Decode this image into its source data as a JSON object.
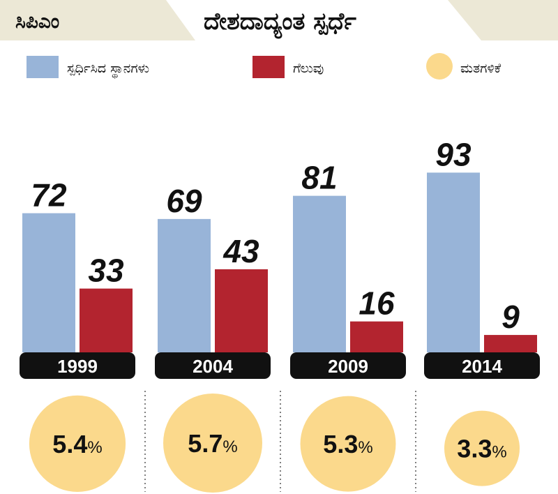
{
  "tag": "ಸಿಪಿಎಂ",
  "title": "ದೇಶದಾದ್ಯಂತ ಸ್ಪರ್ಧೆ",
  "colors": {
    "contested": "#98b4d8",
    "won": "#b3242f",
    "vote_share": "#fbd98c",
    "year_bar": "#111111",
    "header": "#ece8d6"
  },
  "chart_data": {
    "type": "bar",
    "categories": [
      "1999",
      "2004",
      "2009",
      "2014"
    ],
    "series": [
      {
        "name": "ಸ್ಪರ್ಧಿಸಿದ ಸ್ಥಾನಗಳು",
        "values": [
          72,
          69,
          81,
          93
        ]
      },
      {
        "name": "ಗೆಲುವು",
        "values": [
          33,
          43,
          16,
          9
        ]
      }
    ],
    "vote_share": {
      "name": "ಮತಗಳಿಕೆ",
      "values": [
        5.4,
        5.7,
        5.3,
        3.3
      ],
      "unit": "%"
    },
    "ylim": [
      0,
      100
    ],
    "legend": "top",
    "grid": false
  }
}
